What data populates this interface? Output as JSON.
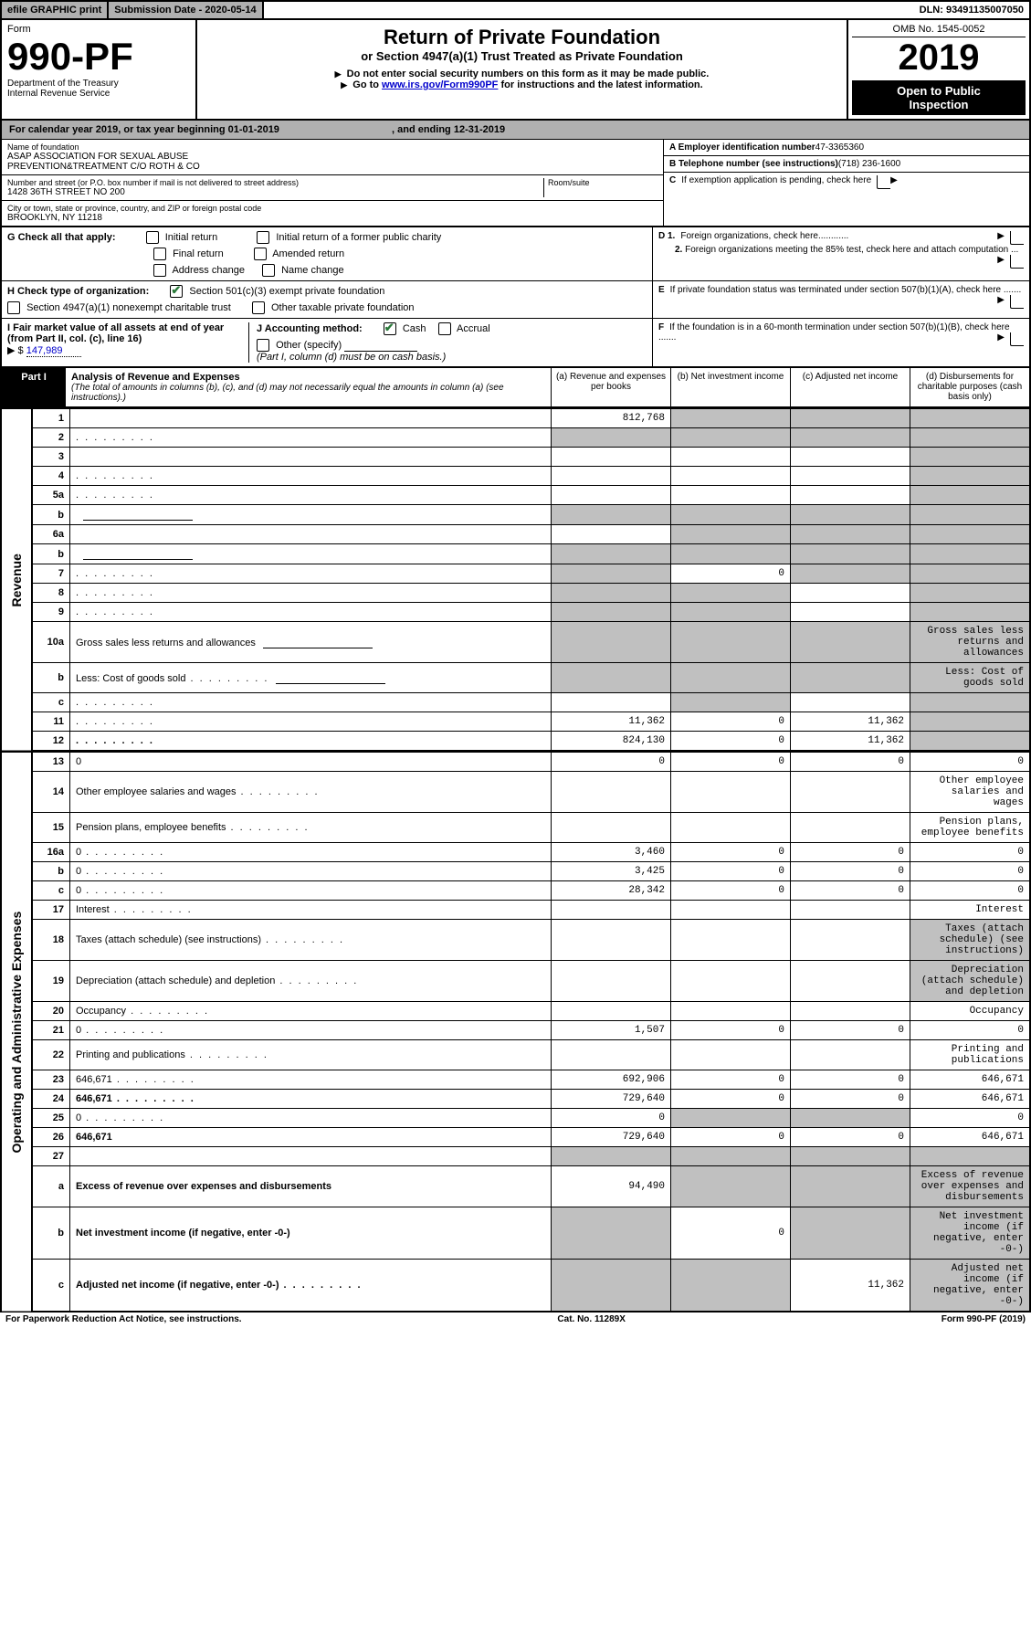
{
  "colors": {
    "greybar": "#b0b0b0",
    "greycell": "#c0c0c0",
    "black": "#000000",
    "link": "#0000cc",
    "checkgreen": "#2a7a3a"
  },
  "topbar": {
    "efile": "efile GRAPHIC print",
    "subdate_label": "Submission Date - 2020-05-14",
    "dln_label": "DLN: 93491135007050"
  },
  "header": {
    "form_word": "Form",
    "form_number": "990-PF",
    "dept1": "Department of the Treasury",
    "dept2": "Internal Revenue Service",
    "title": "Return of Private Foundation",
    "subtitle": "or Section 4947(a)(1) Trust Treated as Private Foundation",
    "note1": "Do not enter social security numbers on this form as it may be made public.",
    "note2_prefix": "Go to ",
    "note2_link": "www.irs.gov/Form990PF",
    "note2_suffix": " for instructions and the latest information.",
    "omb": "OMB No. 1545-0052",
    "year": "2019",
    "open1": "Open to Public",
    "open2": "Inspection"
  },
  "cal": {
    "prefix": "For calendar year 2019, or tax year beginning ",
    "begin": "01-01-2019",
    "mid": " , and ending ",
    "end": "12-31-2019"
  },
  "name": {
    "label": "Name of foundation",
    "line1": "ASAP ASSOCIATION FOR SEXUAL ABUSE",
    "line2": "PREVENTION&TREATMENT C/O ROTH & CO"
  },
  "address": {
    "label": "Number and street (or P.O. box number if mail is not delivered to street address)",
    "room_label": "Room/suite",
    "street": "1428 36TH STREET NO 200",
    "city_label": "City or town, state or province, country, and ZIP or foreign postal code",
    "city": "BROOKLYN, NY  11218"
  },
  "ein": {
    "label": "A Employer identification number",
    "value": "47-3365360"
  },
  "phone": {
    "label": "B Telephone number (see instructions)",
    "value": "(718) 236-1600"
  },
  "C_text": "If exemption application is pending, check here",
  "D1_text": "Foreign organizations, check here............",
  "D2_text": "Foreign organizations meeting the 85% test, check here and attach computation ...",
  "E_text": "If private foundation status was terminated under section 507(b)(1)(A), check here .......",
  "F_text": "If the foundation is in a 60-month termination under section 507(b)(1)(B), check here .......",
  "G": {
    "label": "G Check all that apply:",
    "opts": [
      "Initial return",
      "Initial return of a former public charity",
      "Final return",
      "Amended return",
      "Address change",
      "Name change"
    ]
  },
  "H": {
    "label": "H Check type of organization:",
    "o1": "Section 501(c)(3) exempt private foundation",
    "o2": "Section 4947(a)(1) nonexempt charitable trust",
    "o3": "Other taxable private foundation"
  },
  "I": {
    "label": "I Fair market value of all assets at end of year (from Part II, col. (c), line 16)",
    "sym": "▶ $",
    "value": "147,989"
  },
  "J": {
    "label": "J Accounting method:",
    "cash": "Cash",
    "accrual": "Accrual",
    "other": "Other (specify)",
    "note": "(Part I, column (d) must be on cash basis.)"
  },
  "part1": {
    "tag": "Part I",
    "title": "Analysis of Revenue and Expenses",
    "note": "(The total of amounts in columns (b), (c), and (d) may not necessarily equal the amounts in column (a) (see instructions).)",
    "cols": {
      "a": "(a)  Revenue and expenses per books",
      "b": "(b)  Net investment income",
      "c": "(c)  Adjusted net income",
      "d": "(d)  Disbursements for charitable purposes (cash basis only)"
    }
  },
  "side": {
    "rev": "Revenue",
    "exp": "Operating and Administrative Expenses"
  },
  "rows_revenue": [
    {
      "n": "1",
      "d": null,
      "a": "812,768",
      "b": null,
      "c": null,
      "bgrey": true,
      "cgrey": true,
      "dgrey": true
    },
    {
      "n": "2",
      "d": null,
      "dots": true,
      "a": null,
      "b": null,
      "c": null,
      "bgrey": true,
      "cgrey": true,
      "dgrey": true,
      "agrey": true
    },
    {
      "n": "3",
      "d": null,
      "a": null,
      "b": null,
      "c": null,
      "dgrey": true
    },
    {
      "n": "4",
      "d": null,
      "dots": true,
      "a": null,
      "b": null,
      "c": null,
      "dgrey": true
    },
    {
      "n": "5a",
      "d": null,
      "dots": true,
      "a": null,
      "b": null,
      "c": null,
      "dgrey": true
    },
    {
      "n": "b",
      "d": null,
      "inline": true,
      "a": null,
      "b": null,
      "c": null,
      "agrey": true,
      "bgrey": true,
      "cgrey": true,
      "dgrey": true
    },
    {
      "n": "6a",
      "d": null,
      "a": null,
      "b": null,
      "c": null,
      "bgrey": true,
      "cgrey": true,
      "dgrey": true
    },
    {
      "n": "b",
      "d": null,
      "inline": true,
      "a": null,
      "b": null,
      "c": null,
      "agrey": true,
      "bgrey": true,
      "cgrey": true,
      "dgrey": true
    },
    {
      "n": "7",
      "d": null,
      "dots": true,
      "a": null,
      "b": "0",
      "c": null,
      "agrey": true,
      "cgrey": true,
      "dgrey": true
    },
    {
      "n": "8",
      "d": null,
      "dots": true,
      "a": null,
      "b": null,
      "c": null,
      "agrey": true,
      "bgrey": true,
      "dgrey": true
    },
    {
      "n": "9",
      "d": null,
      "dots": true,
      "a": null,
      "b": null,
      "c": null,
      "agrey": true,
      "bgrey": true,
      "dgrey": true
    },
    {
      "n": "10a",
      "d": "Gross sales less returns and allowances",
      "inline": true,
      "agrey": true,
      "bgrey": true,
      "cgrey": true,
      "dgrey": true
    },
    {
      "n": "b",
      "d": "Less: Cost of goods sold",
      "dots": true,
      "inline": true,
      "agrey": true,
      "bgrey": true,
      "cgrey": true,
      "dgrey": true
    },
    {
      "n": "c",
      "d": null,
      "dots": true,
      "a": null,
      "b": null,
      "c": null,
      "bgrey": true,
      "dgrey": true
    },
    {
      "n": "11",
      "d": null,
      "dots": true,
      "a": "11,362",
      "b": "0",
      "c": "11,362",
      "dgrey": true
    },
    {
      "n": "12",
      "d": null,
      "dots": true,
      "bold": true,
      "a": "824,130",
      "b": "0",
      "c": "11,362",
      "dgrey": true
    }
  ],
  "rows_expenses": [
    {
      "n": "13",
      "d": "0",
      "a": "0",
      "b": "0",
      "c": "0"
    },
    {
      "n": "14",
      "d": "Other employee salaries and wages",
      "dots": true
    },
    {
      "n": "15",
      "d": "Pension plans, employee benefits",
      "dots": true
    },
    {
      "n": "16a",
      "d": "0",
      "dots": true,
      "a": "3,460",
      "b": "0",
      "c": "0"
    },
    {
      "n": "b",
      "d": "0",
      "dots": true,
      "a": "3,425",
      "b": "0",
      "c": "0"
    },
    {
      "n": "c",
      "d": "0",
      "dots": true,
      "a": "28,342",
      "b": "0",
      "c": "0"
    },
    {
      "n": "17",
      "d": "Interest",
      "dots": true
    },
    {
      "n": "18",
      "d": "Taxes (attach schedule) (see instructions)",
      "dots": true,
      "dgrey": true
    },
    {
      "n": "19",
      "d": "Depreciation (attach schedule) and depletion",
      "dots": true,
      "dgrey": true
    },
    {
      "n": "20",
      "d": "Occupancy",
      "dots": true
    },
    {
      "n": "21",
      "d": "0",
      "dots": true,
      "a": "1,507",
      "b": "0",
      "c": "0"
    },
    {
      "n": "22",
      "d": "Printing and publications",
      "dots": true
    },
    {
      "n": "23",
      "d": "646,671",
      "dots": true,
      "a": "692,906",
      "b": "0",
      "c": "0"
    },
    {
      "n": "24",
      "d": "646,671",
      "dots": true,
      "bold": true,
      "a": "729,640",
      "b": "0",
      "c": "0"
    },
    {
      "n": "25",
      "d": "0",
      "dots": true,
      "a": "0",
      "b": null,
      "c": null,
      "bgrey": true,
      "cgrey": true
    },
    {
      "n": "26",
      "d": "646,671",
      "bold": true,
      "a": "729,640",
      "b": "0",
      "c": "0"
    },
    {
      "n": "27",
      "d": null,
      "a": null,
      "b": null,
      "c": null,
      "agrey": true,
      "bgrey": true,
      "cgrey": true,
      "dgrey": true
    },
    {
      "n": "a",
      "d": "Excess of revenue over expenses and disbursements",
      "bold": true,
      "a": "94,490",
      "bgrey": true,
      "cgrey": true,
      "dgrey": true
    },
    {
      "n": "b",
      "d": "Net investment income (if negative, enter -0-)",
      "bold": true,
      "b": "0",
      "agrey": true,
      "cgrey": true,
      "dgrey": true
    },
    {
      "n": "c",
      "d": "Adjusted net income (if negative, enter -0-)",
      "dots": true,
      "bold": true,
      "c": "11,362",
      "agrey": true,
      "bgrey": true,
      "dgrey": true
    }
  ],
  "footer": {
    "left": "For Paperwork Reduction Act Notice, see instructions.",
    "mid": "Cat. No. 11289X",
    "right": "Form 990-PF (2019)"
  }
}
